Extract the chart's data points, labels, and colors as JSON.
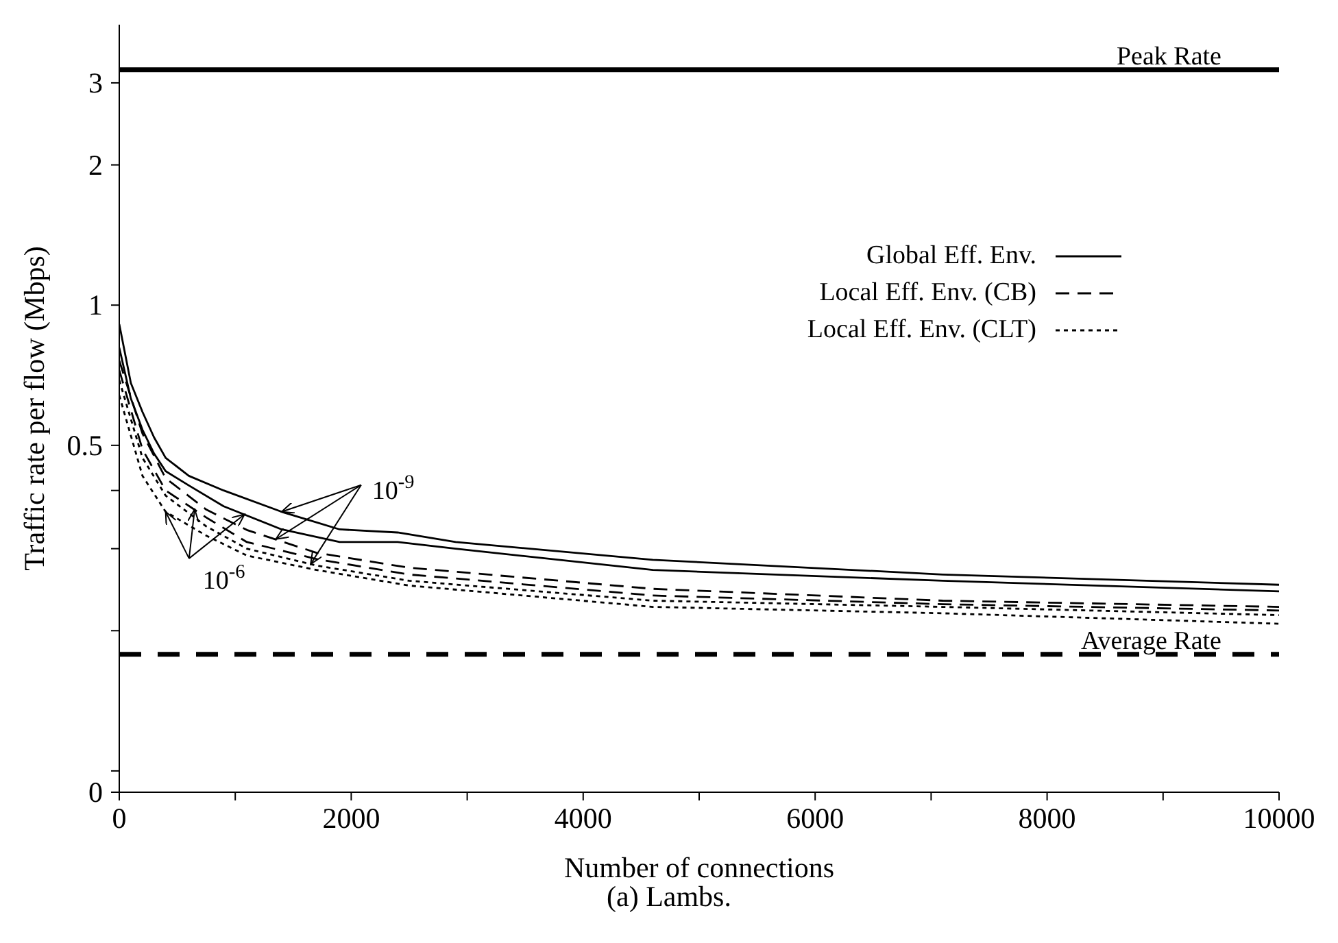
{
  "chart_data": {
    "type": "line",
    "xlabel": "Number of connections",
    "ylabel": "Traffic rate per flow (Mbps)",
    "x": [
      0,
      100,
      200,
      300,
      400,
      600,
      900,
      1400,
      1900,
      2400,
      2900,
      4600,
      7100,
      10000
    ],
    "series": [
      {
        "name": "Global Eff. Env.",
        "color": "#000000",
        "line_style": "solid",
        "values": [
          0.91,
          0.68,
          0.59,
          0.52,
          0.47,
          0.43,
          0.4,
          0.36,
          0.33,
          0.325,
          0.31,
          0.284,
          0.264,
          0.251
        ]
      },
      {
        "color": "#000000",
        "line_style": "solid",
        "values": [
          0.81,
          0.63,
          0.54,
          0.48,
          0.44,
          0.41,
          0.37,
          0.33,
          0.31,
          0.31,
          0.3,
          0.27,
          0.256,
          0.243
        ]
      },
      {
        "name": "Local Eff. Env. (CB)",
        "color": "#000000",
        "line_style": "dashed",
        "x": [
          0,
          200,
          400,
          750,
          1100,
          1700,
          2500,
          4600,
          7100,
          10000
        ],
        "values": [
          0.76,
          0.53,
          0.425,
          0.364,
          0.329,
          0.294,
          0.273,
          0.246,
          0.232,
          0.225
        ]
      },
      {
        "color": "#000000",
        "line_style": "dashed",
        "x": [
          0,
          200,
          400,
          750,
          1100,
          1700,
          2500,
          4600,
          7100,
          10000
        ],
        "values": [
          0.725,
          0.49,
          0.4,
          0.35,
          0.31,
          0.285,
          0.264,
          0.238,
          0.228,
          0.221
        ]
      },
      {
        "name": "Local Eff. Env. (CLT)",
        "color": "#000000",
        "line_style": "dotted",
        "x": [
          0,
          200,
          400,
          750,
          1100,
          1700,
          2500,
          4600,
          7100,
          10000
        ],
        "values": [
          0.69,
          0.47,
          0.39,
          0.335,
          0.3,
          0.276,
          0.256,
          0.232,
          0.225,
          0.216
        ]
      },
      {
        "color": "#000000",
        "line_style": "dotted",
        "x": [
          0,
          200,
          400,
          750,
          1100,
          1700,
          2500,
          4600,
          7100,
          10000
        ],
        "values": [
          0.64,
          0.43,
          0.36,
          0.32,
          0.29,
          0.27,
          0.25,
          0.225,
          0.218,
          0.207
        ]
      }
    ],
    "xlim": [
      0,
      10000
    ],
    "xticks": [
      0,
      {
        "value": 1000,
        "label": null
      },
      2000,
      {
        "value": 3000,
        "label": null
      },
      4000,
      {
        "value": 5000,
        "label": null
      },
      6000,
      {
        "value": 7000,
        "label": null
      },
      8000,
      {
        "value": 9000,
        "label": null
      },
      10000
    ],
    "ylim": [
      0.09,
      4
    ],
    "yticks": [
      {
        "value": 0.09,
        "label": "0"
      },
      {
        "value": 0.1,
        "label": null
      },
      {
        "value": 0.2,
        "label": null
      },
      {
        "value": 0.3,
        "label": null
      },
      {
        "value": 0.4,
        "label": null
      },
      0.5,
      1,
      2,
      3
    ],
    "log": "y",
    "grid": false,
    "legend": "top right",
    "marker": "none",
    "ref_lines": [
      {
        "axis": "y",
        "value": 3.2,
        "label": "Peak Rate",
        "color": "#000000",
        "line_style": "solid"
      },
      {
        "axis": "y",
        "value": 0.178,
        "label": "Average Rate",
        "color": "#000000",
        "line_style": "dashed"
      }
    ],
    "annotations": [
      {
        "text": "10$^{-9}$",
        "x": 1400,
        "y": 0.36
      },
      {
        "text": "10$^{-6}$",
        "x": 400,
        "y": 0.36
      },
      "(a) Lambs."
    ]
  }
}
